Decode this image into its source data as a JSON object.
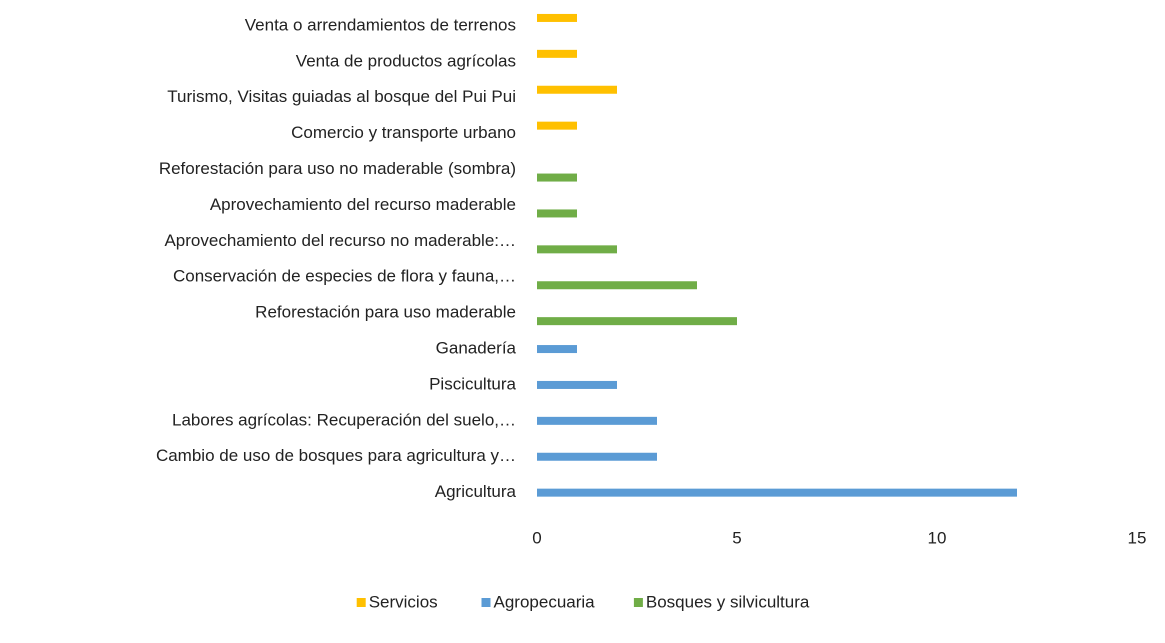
{
  "chart_data": {
    "type": "bar",
    "orientation": "horizontal",
    "categories": [
      "Venta o arrendamientos de terrenos",
      "Venta de productos agrícolas",
      "Turismo, Visitas guiadas al bosque del Pui Pui",
      "Comercio y transporte urbano",
      "Reforestación para uso no maderable (sombra)",
      "Aprovechamiento del recurso maderable",
      "Aprovechamiento del recurso no maderable:…",
      "Conservación de especies de flora y fauna,…",
      "Reforestación para uso maderable",
      "Ganadería",
      "Piscicultura",
      "Labores agrícolas: Recuperación del suelo,…",
      "Cambio de uso de bosques para agricultura y…",
      "Agricultura"
    ],
    "series": [
      {
        "name": "Servicios",
        "color": "#ffc000",
        "values": [
          1,
          1,
          2,
          1,
          null,
          null,
          null,
          null,
          null,
          null,
          null,
          null,
          null,
          null
        ]
      },
      {
        "name": "Agropecuaria",
        "color": "#5b9bd5",
        "values": [
          null,
          null,
          null,
          null,
          null,
          null,
          null,
          null,
          null,
          1,
          2,
          3,
          3,
          12
        ]
      },
      {
        "name": "Bosques y silvicultura",
        "color": "#70ad47",
        "values": [
          null,
          null,
          null,
          null,
          1,
          1,
          2,
          4,
          5,
          null,
          null,
          null,
          null,
          null
        ]
      }
    ],
    "xlim": [
      0,
      15
    ],
    "xticks": [
      0,
      5,
      10,
      15
    ],
    "legend": "bottom"
  }
}
